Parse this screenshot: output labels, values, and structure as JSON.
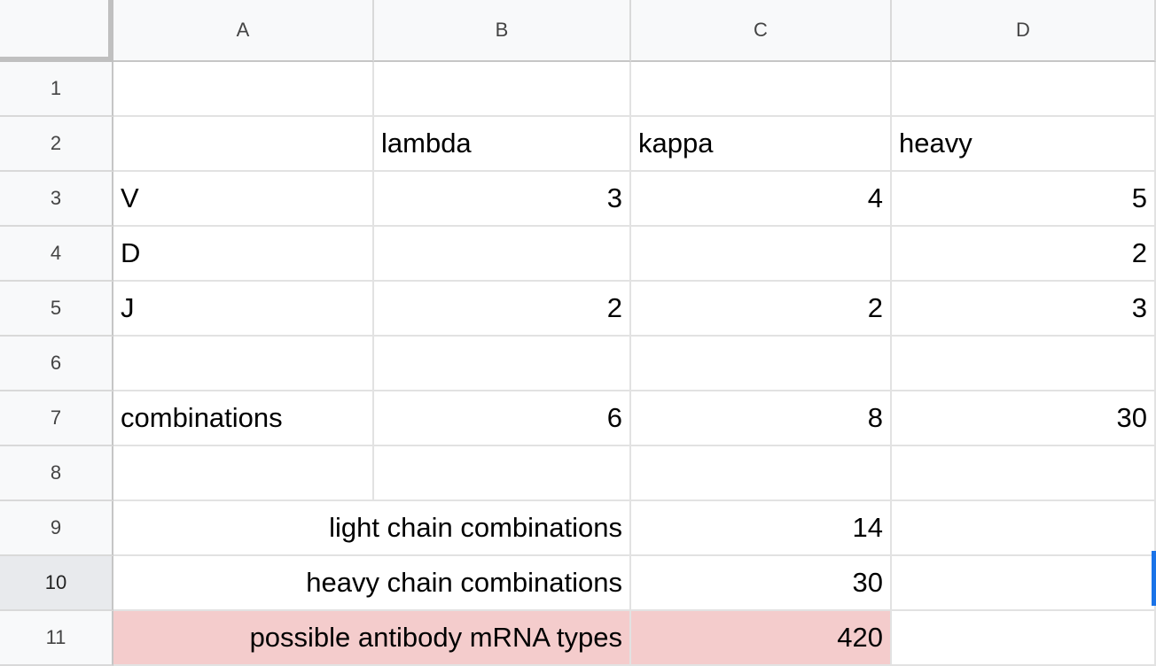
{
  "columns": [
    "A",
    "B",
    "C",
    "D"
  ],
  "rows": [
    "1",
    "2",
    "3",
    "4",
    "5",
    "6",
    "7",
    "8",
    "9",
    "10",
    "11"
  ],
  "active_row": "10",
  "cells": {
    "B2": "lambda",
    "C2": "kappa",
    "D2": "heavy",
    "A3": "V",
    "B3": "3",
    "C3": "4",
    "D3": "5",
    "A4": "D",
    "D4": "2",
    "A5": "J",
    "B5": "2",
    "C5": "2",
    "D5": "3",
    "A7": "combinations",
    "B7": "6",
    "C7": "8",
    "D7": "30",
    "AB9": "light chain combinations",
    "C9": "14",
    "AB10": "heavy chain combinations",
    "C10": "30",
    "AB11": "possible antibody mRNA types",
    "C11": "420"
  },
  "colors": {
    "highlight": "#f4cccc",
    "selection": "#1a73e8",
    "header_bg": "#f8f9fa"
  }
}
